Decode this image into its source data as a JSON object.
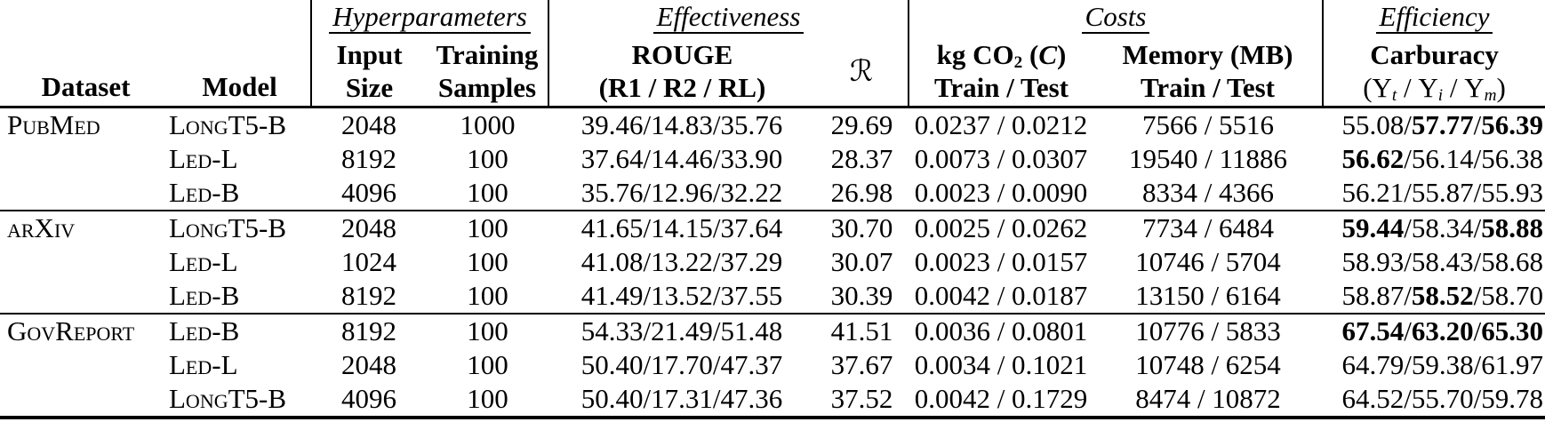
{
  "ui": {
    "slash": "/"
  },
  "header": {
    "dataset": "Dataset",
    "model": "Model",
    "groups": {
      "hyperparameters": "Hyperparameters",
      "effectiveness": "Effectiveness",
      "costs": "Costs",
      "efficiency": "Efficiency"
    },
    "input_line1": "Input",
    "input_line2": "Size",
    "training_line1": "Training",
    "training_line2": "Samples",
    "rouge_line1": "ROUGE",
    "rouge_line2": "(R1 / R2 / RL)",
    "r_symbol": "ℛ",
    "co2_prefix": "kg CO",
    "co2_sub": "2",
    "co2_paren_open": " (",
    "co2_cal": "C",
    "co2_paren_close": ")",
    "co2_line2": "Train / Test",
    "memory_line1": "Memory (MB)",
    "memory_line2": "Train / Test",
    "carburacy_line1": "Carburacy",
    "carburacy_open": "(Υ",
    "carburacy_sub_t": "t",
    "carburacy_sep1": " / Υ",
    "carburacy_sub_i": "i",
    "carburacy_sep2": " / Υ",
    "carburacy_sub_m": "m",
    "carburacy_close": ")"
  },
  "rows": [
    {
      "dataset": "PubMed",
      "model": "LongT5-B",
      "input": "2048",
      "samples": "1000",
      "rouge": "39.46/14.83/35.76",
      "r": "29.69",
      "co2": "0.0237 / 0.0212",
      "memory": "7566 / 5516",
      "carburacy": [
        {
          "v": "55.08",
          "bold": false
        },
        {
          "v": "57.77",
          "bold": true
        },
        {
          "v": "56.39",
          "bold": true
        }
      ],
      "section_start": false
    },
    {
      "dataset": "",
      "model": "Led-L",
      "input": "8192",
      "samples": "100",
      "rouge": "37.64/14.46/33.90",
      "r": "28.37",
      "co2": "0.0073 / 0.0307",
      "memory": "19540 / 11886",
      "carburacy": [
        {
          "v": "56.62",
          "bold": true
        },
        {
          "v": "56.14",
          "bold": false
        },
        {
          "v": "56.38",
          "bold": false
        }
      ],
      "section_start": false
    },
    {
      "dataset": "",
      "model": "Led-B",
      "input": "4096",
      "samples": "100",
      "rouge": "35.76/12.96/32.22",
      "r": "26.98",
      "co2": "0.0023 / 0.0090",
      "memory": "8334 / 4366",
      "carburacy": [
        {
          "v": "56.21",
          "bold": false
        },
        {
          "v": "55.87",
          "bold": false
        },
        {
          "v": "55.93",
          "bold": false
        }
      ],
      "section_start": false
    },
    {
      "dataset": "arXiv",
      "model": "LongT5-B",
      "input": "2048",
      "samples": "100",
      "rouge": "41.65/14.15/37.64",
      "r": "30.70",
      "co2": "0.0025 / 0.0262",
      "memory": "7734 / 6484",
      "carburacy": [
        {
          "v": "59.44",
          "bold": true
        },
        {
          "v": "58.34",
          "bold": false
        },
        {
          "v": "58.88",
          "bold": true
        }
      ],
      "section_start": true
    },
    {
      "dataset": "",
      "model": "Led-L",
      "input": "1024",
      "samples": "100",
      "rouge": "41.08/13.22/37.29",
      "r": "30.07",
      "co2": "0.0023 / 0.0157",
      "memory": "10746 / 5704",
      "carburacy": [
        {
          "v": "58.93",
          "bold": false
        },
        {
          "v": "58.43",
          "bold": false
        },
        {
          "v": "58.68",
          "bold": false
        }
      ],
      "section_start": false
    },
    {
      "dataset": "",
      "model": "Led-B",
      "input": "8192",
      "samples": "100",
      "rouge": "41.49/13.52/37.55",
      "r": "30.39",
      "co2": "0.0042 / 0.0187",
      "memory": "13150 / 6164",
      "carburacy": [
        {
          "v": "58.87",
          "bold": false
        },
        {
          "v": "58.52",
          "bold": true
        },
        {
          "v": "58.70",
          "bold": false
        }
      ],
      "section_start": false
    },
    {
      "dataset": "GovReport",
      "model": "Led-B",
      "input": "8192",
      "samples": "100",
      "rouge": "54.33/21.49/51.48",
      "r": "41.51",
      "co2": "0.0036 / 0.0801",
      "memory": "10776 / 5833",
      "carburacy": [
        {
          "v": "67.54",
          "bold": true
        },
        {
          "v": "63.20",
          "bold": true
        },
        {
          "v": "65.30",
          "bold": true
        }
      ],
      "section_start": true
    },
    {
      "dataset": "",
      "model": "Led-L",
      "input": "2048",
      "samples": "100",
      "rouge": "50.40/17.70/47.37",
      "r": "37.67",
      "co2": "0.0034 / 0.1021",
      "memory": "10748 / 6254",
      "carburacy": [
        {
          "v": "64.79",
          "bold": false
        },
        {
          "v": "59.38",
          "bold": false
        },
        {
          "v": "61.97",
          "bold": false
        }
      ],
      "section_start": false
    },
    {
      "dataset": "",
      "model": "LongT5-B",
      "input": "4096",
      "samples": "100",
      "rouge": "50.40/17.31/47.36",
      "r": "37.52",
      "co2": "0.0042 / 0.1729",
      "memory": "8474 / 10872",
      "carburacy": [
        {
          "v": "64.52",
          "bold": false
        },
        {
          "v": "55.70",
          "bold": false
        },
        {
          "v": "59.78",
          "bold": false
        }
      ],
      "section_start": false
    }
  ]
}
